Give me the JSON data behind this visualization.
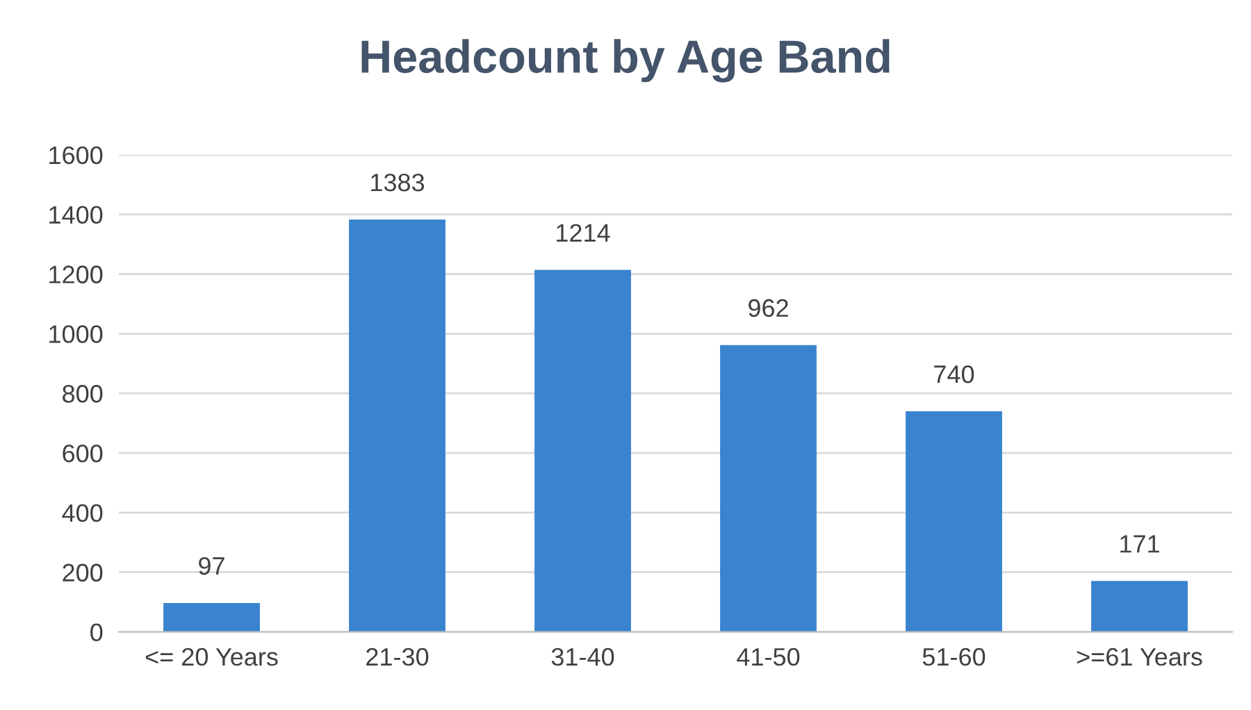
{
  "chart_data": {
    "type": "bar",
    "title": "Headcount by Age Band",
    "categories": [
      "<= 20 Years",
      "21-30",
      "31-40",
      "41-50",
      "51-60",
      ">=61 Years"
    ],
    "values": [
      97,
      1383,
      1214,
      962,
      740,
      171
    ],
    "color": "#3a84cf",
    "ylim": [
      0,
      1600
    ],
    "yticks": [
      0,
      200,
      400,
      600,
      800,
      1000,
      1200,
      1400,
      1600
    ],
    "grid": "y",
    "data_labels": true
  }
}
